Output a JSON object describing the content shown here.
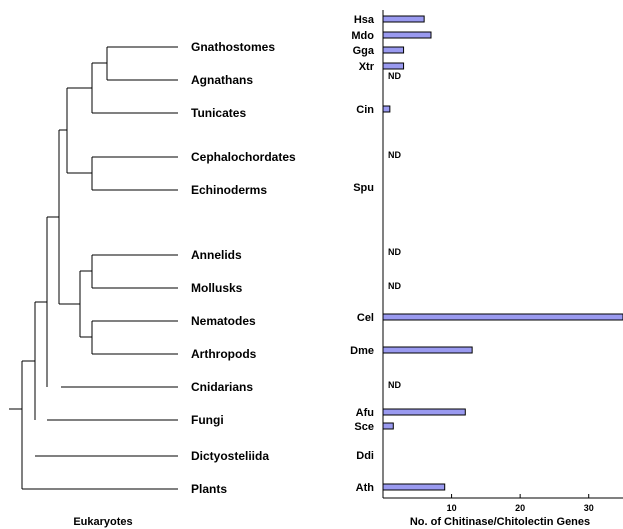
{
  "chart_data": {
    "type": "bar",
    "orientation": "horizontal",
    "tree_label": "Eukaryotes",
    "xlabel": "No. of Chitinase/Chitolectin Genes",
    "xlim": [
      0,
      35
    ],
    "xticks": [
      10,
      20,
      30
    ],
    "groups": [
      {
        "taxon": "Gnathostomes",
        "species": [
          {
            "abbr": "Hsa",
            "value": 6
          },
          {
            "abbr": "Mdo",
            "value": 7
          },
          {
            "abbr": "Gga",
            "value": 3
          },
          {
            "abbr": "Xtr",
            "value": 3
          }
        ]
      },
      {
        "taxon": "Agnathans",
        "species": [
          {
            "abbr": "",
            "value": null,
            "note": "ND"
          }
        ]
      },
      {
        "taxon": "Tunicates",
        "species": [
          {
            "abbr": "Cin",
            "value": 1
          }
        ]
      },
      {
        "taxon": "Cephalochordates",
        "species": [
          {
            "abbr": "",
            "value": null,
            "note": "ND"
          }
        ]
      },
      {
        "taxon": "Echinoderms",
        "species": [
          {
            "abbr": "Spu",
            "value": 0
          }
        ]
      },
      {
        "taxon": "Annelids",
        "species": [
          {
            "abbr": "",
            "value": null,
            "note": "ND"
          }
        ]
      },
      {
        "taxon": "Mollusks",
        "species": [
          {
            "abbr": "",
            "value": null,
            "note": "ND"
          }
        ]
      },
      {
        "taxon": "Nematodes",
        "species": [
          {
            "abbr": "Cel",
            "value": 35
          }
        ]
      },
      {
        "taxon": "Arthropods",
        "species": [
          {
            "abbr": "Dme",
            "value": 13
          }
        ]
      },
      {
        "taxon": "Cnidarians",
        "species": [
          {
            "abbr": "",
            "value": null,
            "note": "ND"
          }
        ]
      },
      {
        "taxon": "Fungi",
        "species": [
          {
            "abbr": "Afu",
            "value": 12
          },
          {
            "abbr": "Sce",
            "value": 1.5
          }
        ]
      },
      {
        "taxon": "Dictyosteliida",
        "species": [
          {
            "abbr": "Ddi",
            "value": 0
          }
        ]
      },
      {
        "taxon": "Plants",
        "species": [
          {
            "abbr": "Ath",
            "value": 9
          }
        ]
      }
    ]
  }
}
